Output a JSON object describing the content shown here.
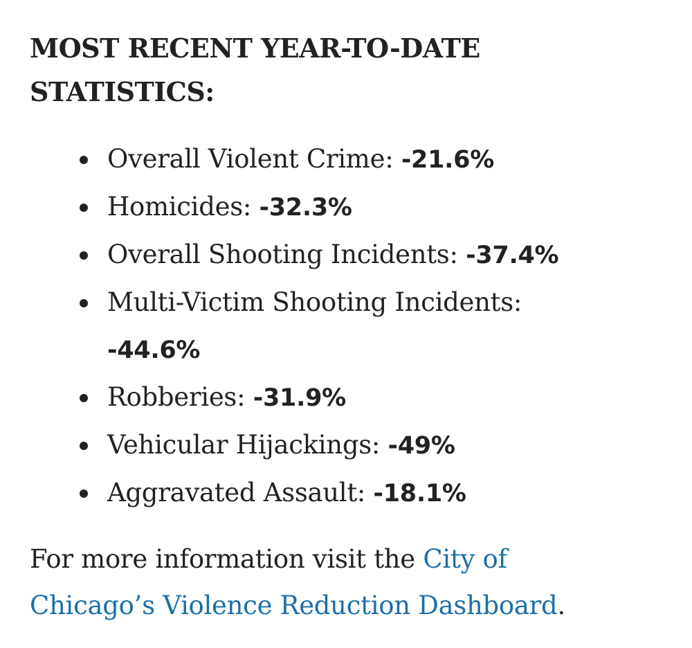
{
  "heading": "MOST RECENT YEAR-TO-DATE STATISTICS:",
  "stats": [
    {
      "label": "Overall Violent Crime: ",
      "value": "-21.6%"
    },
    {
      "label": "Homicides: ",
      "value": "-32.3%"
    },
    {
      "label": "Overall Shooting Incidents: ",
      "value": "-37.4%"
    },
    {
      "label": "Multi-Victim Shooting Incidents: ",
      "value": "-44.6%"
    },
    {
      "label": "Robberies: ",
      "value": "-31.9%"
    },
    {
      "label": "Vehicular Hijackings: ",
      "value": "-49%"
    },
    {
      "label": "Aggravated Assault: ",
      "value": "-18.1%"
    }
  ],
  "footer": {
    "prefix": "For more information visit the ",
    "link_text": "City of Chicago’s Violence Reduction Dashboard",
    "suffix": "."
  },
  "colors": {
    "text": "#222222",
    "link": "#1c6fa6"
  }
}
